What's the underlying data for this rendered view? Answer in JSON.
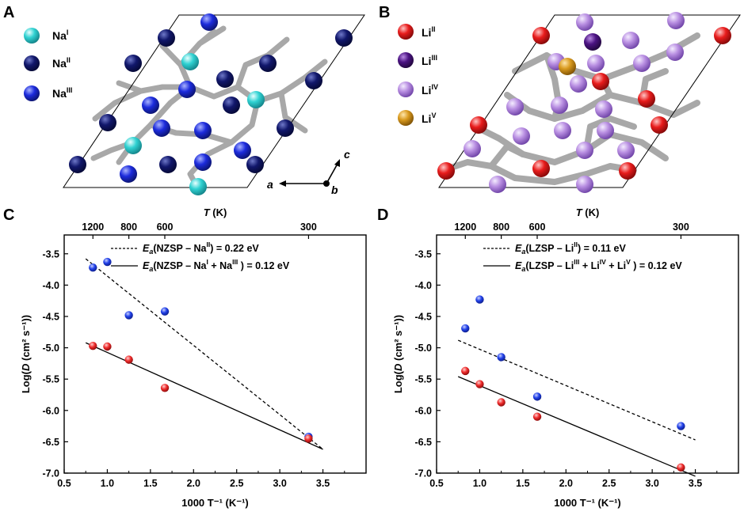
{
  "panels": {
    "A": {
      "label": "A",
      "legend": [
        {
          "base": "Na",
          "sup": "I",
          "color": "#30d2d2"
        },
        {
          "base": "Na",
          "sup": "II",
          "color": "#11176b"
        },
        {
          "base": "Na",
          "sup": "III",
          "color": "#1c2bdc"
        }
      ],
      "axes": {
        "a": "a",
        "b": "b",
        "c": "c"
      }
    },
    "B": {
      "label": "B",
      "legend": [
        {
          "base": "Li",
          "sup": "II",
          "color": "#e81c1c"
        },
        {
          "base": "Li",
          "sup": "III",
          "color": "#4b1382"
        },
        {
          "base": "Li",
          "sup": "IV",
          "color": "#b98fe2"
        },
        {
          "base": "Li",
          "sup": "V",
          "color": "#d99a1e"
        }
      ]
    },
    "C": {
      "label": "C"
    },
    "D": {
      "label": "D"
    }
  },
  "chart_data": [
    {
      "type": "scatter",
      "panel": "C",
      "xlabel": "1000 T⁻¹ (K⁻¹)",
      "ylabel": "Log(D (cm² s⁻¹))",
      "top_axis_label": "T (K)",
      "top_ticks": [
        1200,
        800,
        600,
        300
      ],
      "xlim": [
        0.5,
        4.0
      ],
      "ylim": [
        -7.0,
        -3.2
      ],
      "xticks": [
        "0.5",
        "1.0",
        "1.5",
        "2.0",
        "2.5",
        "3.0",
        "3.5"
      ],
      "yticks": [
        "-3.5",
        "-4.0",
        "-4.5",
        "-5.0",
        "-5.5",
        "-6.0",
        "-6.5",
        "-7.0"
      ],
      "series": [
        {
          "color": "#2040e8",
          "points": [
            [
              0.833,
              -3.72
            ],
            [
              1.0,
              -3.63
            ],
            [
              1.25,
              -4.48
            ],
            [
              1.667,
              -4.42
            ],
            [
              3.333,
              -6.42
            ]
          ]
        },
        {
          "color": "#ee2a2a",
          "points": [
            [
              0.833,
              -4.97
            ],
            [
              1.0,
              -4.98
            ],
            [
              1.25,
              -5.19
            ],
            [
              1.667,
              -5.64
            ],
            [
              3.333,
              -6.45
            ]
          ]
        }
      ],
      "fits": [
        {
          "style": "dashed",
          "label_E": "E",
          "label_sub": "a",
          "label_rest": "(NZSP – Na",
          "label_sup": "II",
          "label_tail": ") = 0.22 eV",
          "points": [
            [
              0.75,
              -3.58
            ],
            [
              3.5,
              -6.62
            ]
          ]
        },
        {
          "style": "solid",
          "label_E": "E",
          "label_sub": "a",
          "label_rest": "(NZSP – Na",
          "label_sup": "I",
          "label_mid": " + Na",
          "label_sup2": "III",
          "label_tail": " ) = 0.12 eV",
          "points": [
            [
              0.75,
              -4.92
            ],
            [
              3.5,
              -6.62
            ]
          ]
        }
      ]
    },
    {
      "type": "scatter",
      "panel": "D",
      "xlabel": "1000 T⁻¹ (K⁻¹)",
      "ylabel": "Log(D (cm² s⁻¹))",
      "top_axis_label": "T (K)",
      "top_ticks": [
        1200,
        800,
        600,
        300
      ],
      "xlim": [
        0.5,
        4.0
      ],
      "ylim": [
        -7.0,
        -3.2
      ],
      "xticks": [
        "0.5",
        "1.0",
        "1.5",
        "2.0",
        "2.5",
        "3.0",
        "3.5"
      ],
      "yticks": [
        "-3.5",
        "-4.0",
        "-4.5",
        "-5.0",
        "-5.5",
        "-6.0",
        "-6.5",
        "-7.0"
      ],
      "series": [
        {
          "color": "#2040e8",
          "points": [
            [
              0.833,
              -4.69
            ],
            [
              1.0,
              -4.23
            ],
            [
              1.25,
              -5.15
            ],
            [
              1.667,
              -5.78
            ],
            [
              3.333,
              -6.25
            ]
          ]
        },
        {
          "color": "#ee2a2a",
          "points": [
            [
              0.833,
              -5.37
            ],
            [
              1.0,
              -5.58
            ],
            [
              1.25,
              -5.87
            ],
            [
              1.667,
              -6.1
            ],
            [
              3.333,
              -6.91
            ]
          ]
        }
      ],
      "fits": [
        {
          "style": "dashed",
          "label_E": "E",
          "label_sub": "a",
          "label_rest": "(LZSP – Li",
          "label_sup": "II",
          "label_tail": ") = 0.11 eV",
          "points": [
            [
              0.75,
              -4.88
            ],
            [
              3.5,
              -6.47
            ]
          ]
        },
        {
          "style": "solid",
          "label_E": "E",
          "label_sub": "a",
          "label_rest": "(LZSP – Li",
          "label_sup": "III",
          "label_mid": " + Li",
          "label_sup2": "IV",
          "label_mid2": " + Li",
          "label_sup3": "V",
          "label_tail": " ) = 0.12 eV",
          "points": [
            [
              0.75,
              -5.46
            ],
            [
              3.5,
              -7.05
            ]
          ]
        }
      ]
    }
  ]
}
